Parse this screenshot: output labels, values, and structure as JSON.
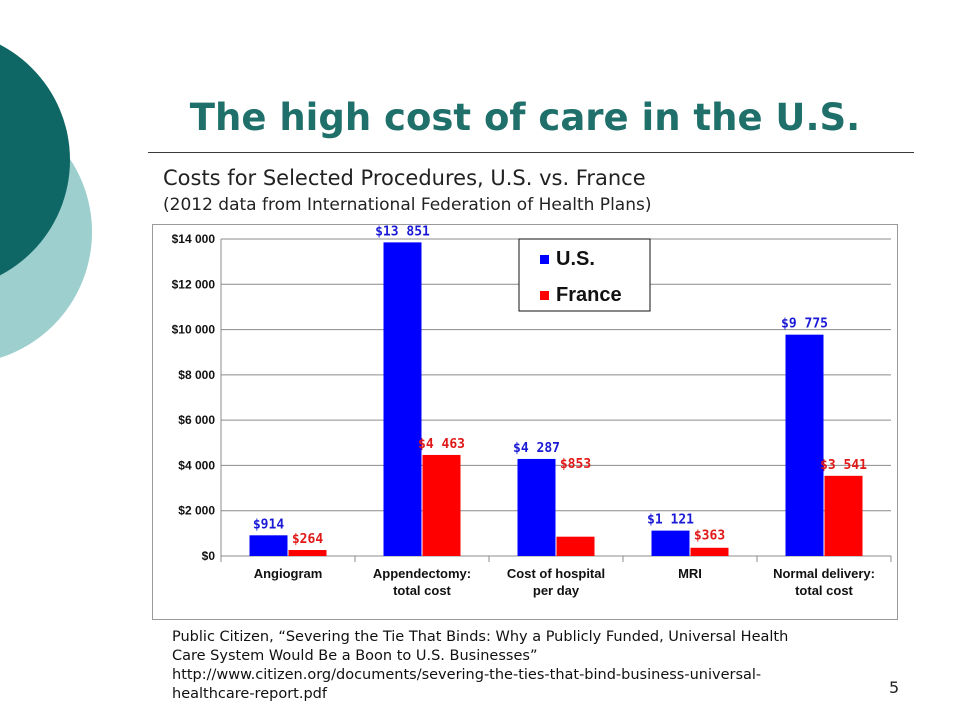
{
  "slide": {
    "title": "The high cost of care in the U.S.",
    "subtitle": "Costs for Selected Procedures, U.S. vs. France",
    "subtitle_note": "(2012 data from International Federation of Health Plans)",
    "source_lines": [
      "Public Citizen, “Severing the Tie That Binds: Why a Publicly Funded, Universal Health",
      "Care System Would Be a Boon to U.S. Businesses”",
      "http://www.citizen.org/documents/severing-the-ties-that-bind-business-universal-",
      "healthcare-report.pdf"
    ],
    "page_number": "5",
    "theme_colors": {
      "title": "#1f6f6a",
      "deco_dark": "#0e6764",
      "deco_light": "#9ecfcf"
    }
  },
  "chart_data": {
    "type": "bar",
    "title": "",
    "xlabel": "",
    "ylabel": "",
    "ylim": [
      0,
      14000
    ],
    "yticks": [
      0,
      2000,
      4000,
      6000,
      8000,
      10000,
      12000,
      14000
    ],
    "ytick_labels": [
      "$0",
      "$2 000",
      "$4 000",
      "$6 000",
      "$8 000",
      "$10 000",
      "$12 000",
      "$14 000"
    ],
    "grid": true,
    "legend_position": "top-center",
    "categories": [
      [
        "Angiogram"
      ],
      [
        "Appendectomy:",
        "total cost"
      ],
      [
        "Cost of hospital",
        "per day"
      ],
      [
        "MRI"
      ],
      [
        "Normal delivery:",
        "total cost"
      ]
    ],
    "series": [
      {
        "name": "U.S.",
        "color": "#0000ff",
        "label_color": "#1a1ad6",
        "values": [
          914,
          13851,
          4287,
          1121,
          9775
        ],
        "labels": [
          "$914",
          "$13 851",
          "$4 287",
          "$1 121",
          "$9 775"
        ]
      },
      {
        "name": "France",
        "color": "#ff0000",
        "label_color": "#e01818",
        "values": [
          264,
          4463,
          853,
          363,
          3541
        ],
        "labels": [
          "$264",
          "$4 463",
          "$853",
          "$363",
          "$3 541"
        ]
      }
    ]
  }
}
